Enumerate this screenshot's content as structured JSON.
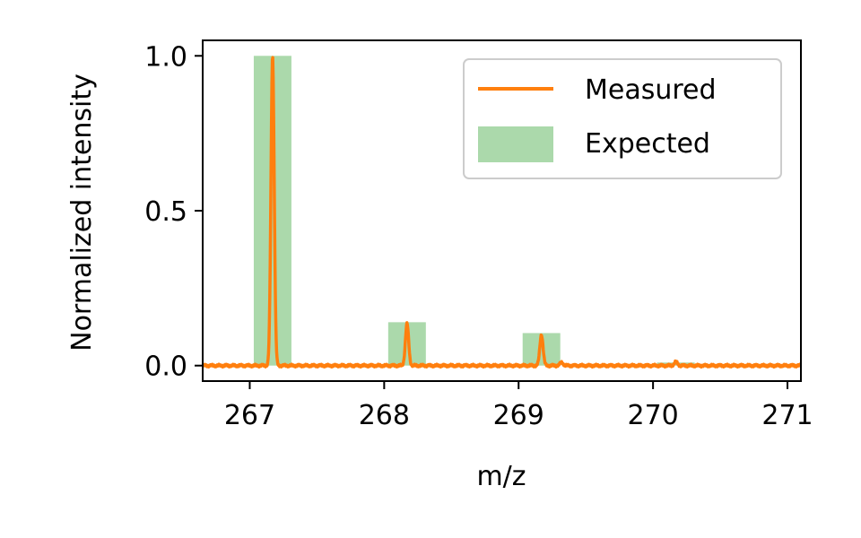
{
  "chart_data": {
    "type": "line",
    "xlabel": "m/z",
    "ylabel": "Normalized intensity",
    "xlim": [
      266.65,
      271.1
    ],
    "ylim": [
      -0.05,
      1.05
    ],
    "x_ticks": [
      267,
      268,
      269,
      270,
      271
    ],
    "x_tick_labels": [
      "267",
      "268",
      "269",
      "270",
      "271"
    ],
    "y_ticks": [
      0.0,
      0.5,
      1.0
    ],
    "y_tick_labels": [
      "0.0",
      "0.5",
      "1.0"
    ],
    "grid": false,
    "legend_position": "top-right",
    "legend": {
      "measured": "Measured",
      "expected": "Expected"
    },
    "measured": {
      "name": "Measured",
      "color": "#ff7f0e",
      "baseline": 0.0,
      "peaks": [
        {
          "mz": 267.17,
          "intensity": 1.0
        },
        {
          "mz": 268.17,
          "intensity": 0.135
        },
        {
          "mz": 269.17,
          "intensity": 0.1
        },
        {
          "mz": 269.32,
          "intensity": 0.01
        },
        {
          "mz": 270.17,
          "intensity": 0.012
        }
      ]
    },
    "expected": {
      "name": "Expected",
      "color": "#2ca02c",
      "bar_width": 0.28,
      "bars": [
        {
          "mz": 267.17,
          "intensity": 1.0
        },
        {
          "mz": 268.17,
          "intensity": 0.14
        },
        {
          "mz": 269.17,
          "intensity": 0.105
        },
        {
          "mz": 270.17,
          "intensity": 0.01
        }
      ]
    }
  }
}
